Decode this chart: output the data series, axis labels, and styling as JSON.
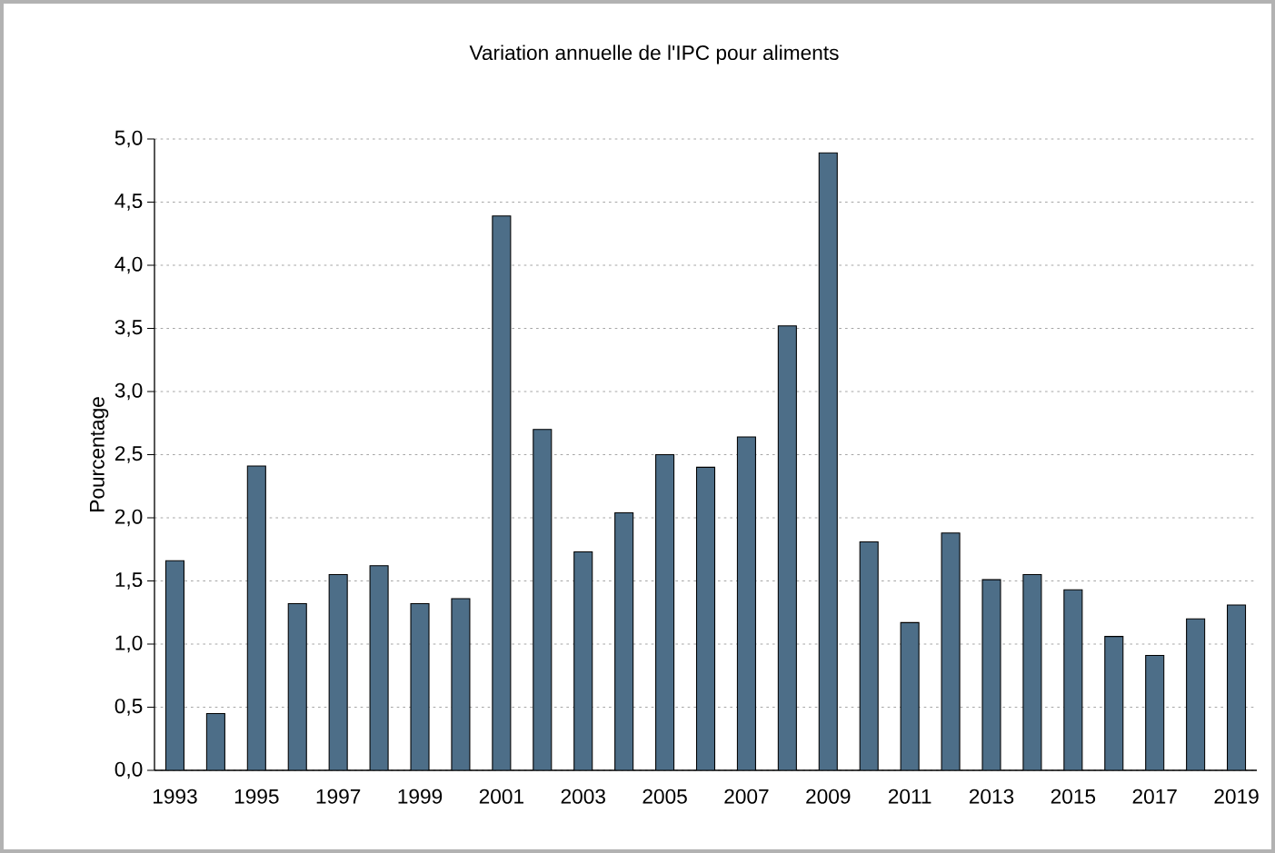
{
  "chart_data": {
    "type": "bar",
    "title": "Variation annuelle de l'IPC pour aliments",
    "ylabel": "Pourcentage",
    "categories": [
      "1993",
      null,
      "1995",
      null,
      "1997",
      null,
      "1999",
      null,
      "2001",
      null,
      "2003",
      null,
      "2005",
      null,
      "2007",
      null,
      "2009",
      null,
      "2011",
      null,
      "2013",
      null,
      "2015",
      null,
      "2017",
      null,
      "2019"
    ],
    "values": [
      1.66,
      0.45,
      2.41,
      1.32,
      1.55,
      1.62,
      1.32,
      1.36,
      4.39,
      2.7,
      1.73,
      2.04,
      2.5,
      2.4,
      2.64,
      3.52,
      4.89,
      1.81,
      1.17,
      1.88,
      1.51,
      1.55,
      1.43,
      1.06,
      0.91,
      1.2,
      1.31
    ],
    "color": "#4d6e88",
    "ylim": [
      0,
      5
    ],
    "yticks": [
      {
        "value": 0,
        "label": "0,0"
      },
      {
        "value": 0.5,
        "label": "0,5"
      },
      {
        "value": 1,
        "label": "1,0"
      },
      {
        "value": 1.5,
        "label": "1,5"
      },
      {
        "value": 2,
        "label": "2,0"
      },
      {
        "value": 2.5,
        "label": "2,5"
      },
      {
        "value": 3,
        "label": "3,0"
      },
      {
        "value": 3.5,
        "label": "3,5"
      },
      {
        "value": 4,
        "label": "4,0"
      },
      {
        "value": 4.5,
        "label": "4,5"
      },
      {
        "value": 5,
        "label": "5,0"
      }
    ],
    "grid": "y"
  }
}
